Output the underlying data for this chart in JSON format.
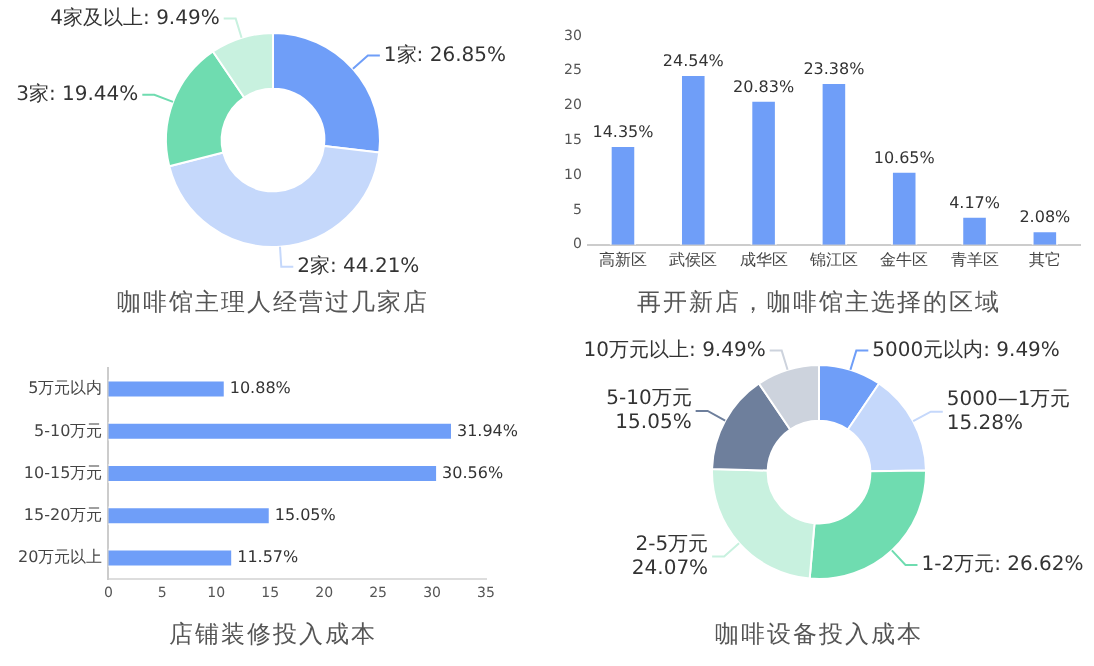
{
  "chart_data": [
    {
      "type": "donut",
      "title": "咖啡馆主理人经营过几家店",
      "categories": [
        "1家",
        "2家",
        "3家",
        "4家及以上"
      ],
      "values": [
        26.85,
        44.21,
        19.44,
        9.49
      ],
      "value_labels": [
        "26.85%",
        "44.21%",
        "19.44%",
        "9.49%"
      ],
      "colors": [
        "#6f9ef8",
        "#c5d8fb",
        "#6fdcb0",
        "#c8f1df"
      ],
      "legend": false
    },
    {
      "type": "bar",
      "title": "再开新店，咖啡馆主选择的区域",
      "categories": [
        "高新区",
        "武侯区",
        "成华区",
        "锦江区",
        "金牛区",
        "青羊区",
        "其它"
      ],
      "values": [
        14.35,
        24.54,
        20.83,
        23.38,
        10.65,
        4.17,
        2.08
      ],
      "value_labels": [
        "14.35%",
        "24.54%",
        "20.83%",
        "23.38%",
        "10.65%",
        "4.17%",
        "2.08%"
      ],
      "color": "#6f9ef8",
      "ylim": [
        0,
        30
      ],
      "yticks": [
        0,
        5,
        10,
        15,
        20,
        25,
        30
      ],
      "grid": false,
      "legend": false
    },
    {
      "type": "bar",
      "orientation": "horizontal",
      "title": "店铺装修投入成本",
      "categories": [
        "5万元以内",
        "5-10万元",
        "10-15万元",
        "15-20万元",
        "20万元以上"
      ],
      "values": [
        10.88,
        31.94,
        30.56,
        15.05,
        11.57
      ],
      "value_labels": [
        "10.88%",
        "31.94%",
        "30.56%",
        "15.05%",
        "11.57%"
      ],
      "color": "#6f9ef8",
      "xlim": [
        0,
        35
      ],
      "xticks": [
        0,
        5,
        10,
        15,
        20,
        25,
        30,
        35
      ],
      "grid": false,
      "legend": false
    },
    {
      "type": "donut",
      "title": "咖啡设备投入成本",
      "categories": [
        "5000元以内",
        "5000—1万元",
        "1-2万元",
        "2-5万元",
        "5-10万元",
        "10万元以上"
      ],
      "values": [
        9.49,
        15.28,
        26.62,
        24.07,
        15.05,
        9.49
      ],
      "value_labels": [
        "9.49%",
        "15.28%",
        "26.62%",
        "24.07%",
        "15.05%",
        "9.49%"
      ],
      "colors": [
        "#6f9ef8",
        "#c5d8fb",
        "#6fdcb0",
        "#c8f1df",
        "#6e7f9c",
        "#cdd3dd"
      ],
      "legend": false
    }
  ]
}
